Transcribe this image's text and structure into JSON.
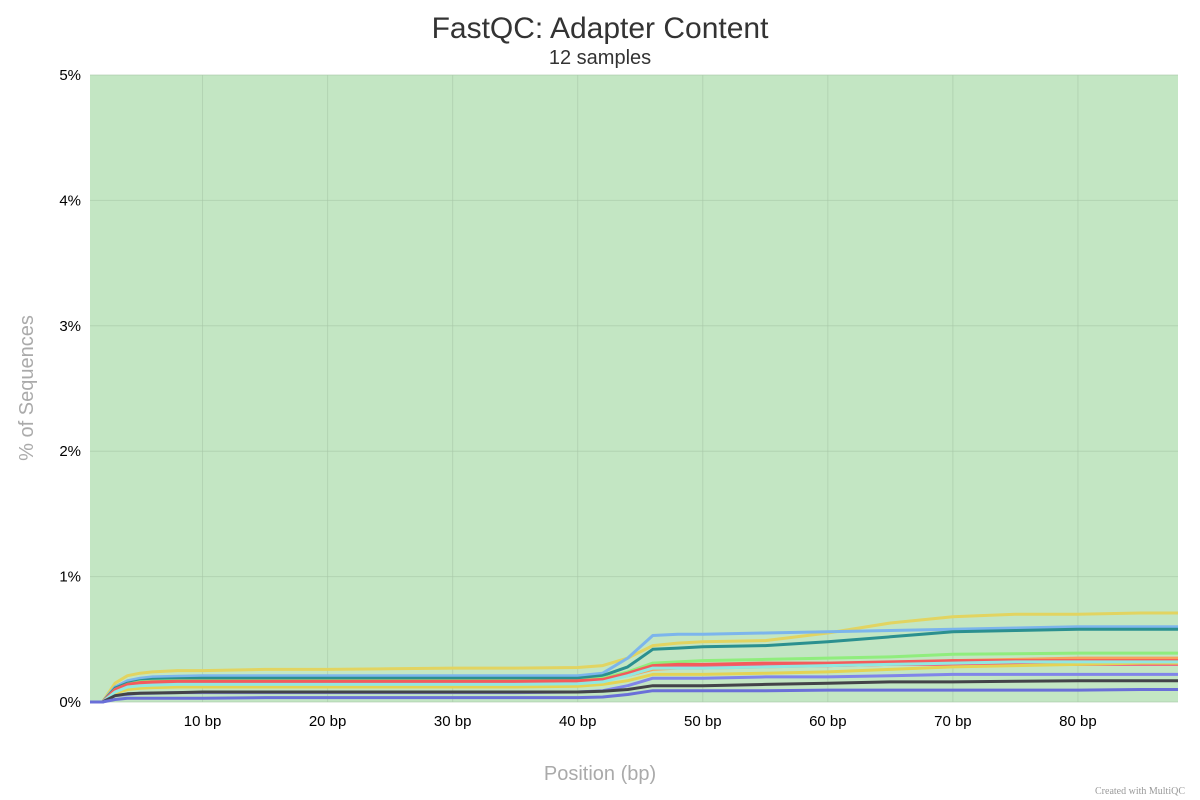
{
  "chart_data": {
    "type": "line",
    "title": "FastQC: Adapter Content",
    "subtitle": "12 samples",
    "xlabel": "Position (bp)",
    "ylabel": "% of Sequences",
    "xlim": [
      1,
      88
    ],
    "ylim": [
      0,
      5
    ],
    "y_ticks": [
      0,
      1,
      2,
      3,
      4,
      5
    ],
    "y_tick_labels": [
      "0%",
      "1%",
      "2%",
      "3%",
      "4%",
      "5%"
    ],
    "x_ticks": [
      10,
      20,
      30,
      40,
      50,
      60,
      70,
      80
    ],
    "x_tick_labels": [
      "10 bp",
      "20 bp",
      "30 bp",
      "40 bp",
      "50 bp",
      "60 bp",
      "70 bp",
      "80 bp"
    ],
    "grid": true,
    "background_color": "#c3e6c3",
    "x": [
      1,
      2,
      3,
      4,
      5,
      6,
      8,
      10,
      15,
      20,
      25,
      30,
      35,
      40,
      42,
      44,
      46,
      48,
      50,
      55,
      60,
      65,
      70,
      75,
      80,
      85,
      88
    ],
    "series": [
      {
        "color": "#e2d461",
        "values": [
          0,
          0,
          0.15,
          0.21,
          0.23,
          0.24,
          0.25,
          0.25,
          0.26,
          0.26,
          0.265,
          0.27,
          0.27,
          0.275,
          0.29,
          0.35,
          0.45,
          0.47,
          0.48,
          0.49,
          0.55,
          0.63,
          0.68,
          0.7,
          0.7,
          0.71,
          0.71
        ]
      },
      {
        "color": "#7cb5ec",
        "values": [
          0,
          0,
          0.12,
          0.17,
          0.19,
          0.2,
          0.205,
          0.21,
          0.21,
          0.21,
          0.21,
          0.21,
          0.21,
          0.21,
          0.23,
          0.35,
          0.53,
          0.54,
          0.54,
          0.55,
          0.56,
          0.57,
          0.58,
          0.59,
          0.6,
          0.6,
          0.6
        ]
      },
      {
        "color": "#2b908f",
        "values": [
          0,
          0,
          0.11,
          0.15,
          0.17,
          0.18,
          0.185,
          0.19,
          0.19,
          0.19,
          0.19,
          0.19,
          0.19,
          0.19,
          0.21,
          0.28,
          0.42,
          0.43,
          0.44,
          0.45,
          0.48,
          0.52,
          0.56,
          0.57,
          0.58,
          0.58,
          0.58
        ]
      },
      {
        "color": "#90ed7d",
        "values": [
          0,
          0,
          0.1,
          0.14,
          0.16,
          0.165,
          0.17,
          0.17,
          0.17,
          0.17,
          0.17,
          0.17,
          0.17,
          0.17,
          0.19,
          0.24,
          0.31,
          0.32,
          0.33,
          0.34,
          0.35,
          0.36,
          0.38,
          0.385,
          0.39,
          0.39,
          0.39
        ]
      },
      {
        "color": "#f7a35c",
        "values": [
          0,
          0,
          0.09,
          0.13,
          0.15,
          0.155,
          0.16,
          0.16,
          0.16,
          0.16,
          0.16,
          0.16,
          0.16,
          0.16,
          0.17,
          0.21,
          0.26,
          0.27,
          0.27,
          0.28,
          0.29,
          0.3,
          0.33,
          0.34,
          0.35,
          0.35,
          0.35
        ]
      },
      {
        "color": "#f15c80",
        "values": [
          0,
          0,
          0.09,
          0.13,
          0.145,
          0.15,
          0.155,
          0.155,
          0.155,
          0.155,
          0.155,
          0.155,
          0.155,
          0.16,
          0.17,
          0.22,
          0.28,
          0.28,
          0.28,
          0.29,
          0.29,
          0.3,
          0.3,
          0.3,
          0.3,
          0.3,
          0.3
        ]
      },
      {
        "color": "#f45b5b",
        "values": [
          0,
          0,
          0.1,
          0.14,
          0.155,
          0.16,
          0.165,
          0.165,
          0.165,
          0.165,
          0.165,
          0.165,
          0.165,
          0.17,
          0.18,
          0.23,
          0.29,
          0.3,
          0.3,
          0.31,
          0.31,
          0.32,
          0.33,
          0.33,
          0.33,
          0.33,
          0.33
        ]
      },
      {
        "color": "#e4d354",
        "values": [
          0,
          0,
          0.07,
          0.1,
          0.11,
          0.115,
          0.12,
          0.12,
          0.12,
          0.12,
          0.12,
          0.12,
          0.12,
          0.125,
          0.14,
          0.17,
          0.22,
          0.22,
          0.22,
          0.23,
          0.24,
          0.26,
          0.28,
          0.29,
          0.3,
          0.31,
          0.31
        ]
      },
      {
        "color": "#8085e9",
        "values": [
          0,
          0,
          0.05,
          0.06,
          0.07,
          0.07,
          0.075,
          0.075,
          0.075,
          0.075,
          0.075,
          0.075,
          0.075,
          0.08,
          0.09,
          0.13,
          0.19,
          0.19,
          0.19,
          0.2,
          0.2,
          0.21,
          0.22,
          0.22,
          0.22,
          0.22,
          0.22
        ]
      },
      {
        "color": "#91e8e1",
        "values": [
          0,
          0,
          0.08,
          0.12,
          0.13,
          0.135,
          0.14,
          0.14,
          0.14,
          0.14,
          0.14,
          0.14,
          0.14,
          0.145,
          0.16,
          0.21,
          0.27,
          0.27,
          0.27,
          0.28,
          0.29,
          0.3,
          0.31,
          0.32,
          0.32,
          0.32,
          0.32
        ]
      },
      {
        "color": "#434348",
        "values": [
          0,
          0,
          0.05,
          0.065,
          0.07,
          0.072,
          0.075,
          0.08,
          0.08,
          0.08,
          0.08,
          0.08,
          0.08,
          0.08,
          0.085,
          0.1,
          0.13,
          0.13,
          0.13,
          0.14,
          0.15,
          0.16,
          0.16,
          0.165,
          0.17,
          0.17,
          0.17
        ]
      },
      {
        "color": "#6a6fd8",
        "values": [
          0,
          0,
          0.02,
          0.03,
          0.03,
          0.03,
          0.03,
          0.03,
          0.035,
          0.035,
          0.035,
          0.035,
          0.035,
          0.035,
          0.04,
          0.06,
          0.09,
          0.09,
          0.09,
          0.09,
          0.095,
          0.095,
          0.095,
          0.095,
          0.095,
          0.1,
          0.1
        ]
      }
    ]
  },
  "credit": "Created with MultiQC"
}
